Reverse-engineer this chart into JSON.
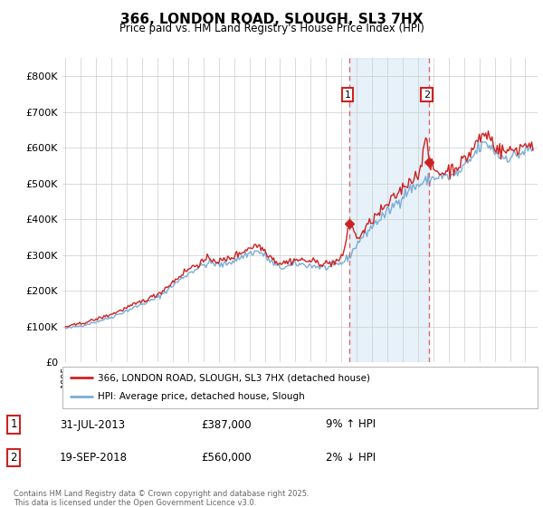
{
  "title": "366, LONDON ROAD, SLOUGH, SL3 7HX",
  "subtitle": "Price paid vs. HM Land Registry's House Price Index (HPI)",
  "ylim": [
    0,
    850000
  ],
  "xlim_start": 1994.8,
  "xlim_end": 2025.8,
  "hpi_color": "#7aaed6",
  "hpi_fill_color": "#d6e8f5",
  "price_color": "#cc2222",
  "vline_color": "#dd6666",
  "marker1_date_year": 2013,
  "marker1_date_month": 7,
  "marker2_date_year": 2018,
  "marker2_date_month": 9,
  "marker1_price": 387000,
  "marker2_price": 560000,
  "footnote": "Contains HM Land Registry data © Crown copyright and database right 2025.\nThis data is licensed under the Open Government Licence v3.0."
}
